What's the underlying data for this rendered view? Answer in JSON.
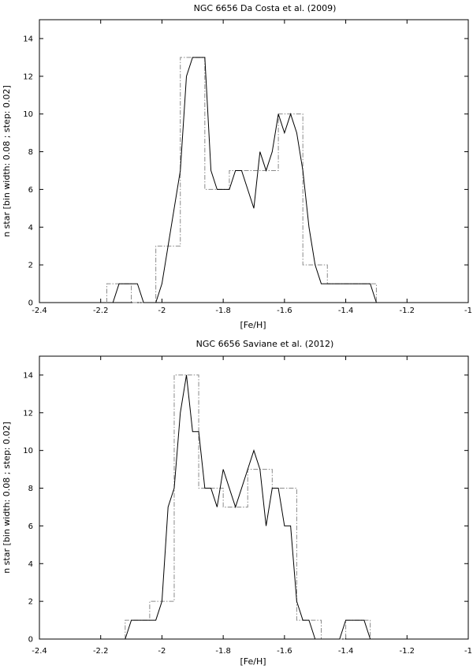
{
  "chart_data": [
    {
      "type": "line",
      "title": "NGC 6656    Da Costa et al. (2009)",
      "xlabel": "[Fe/H]",
      "ylabel": "n star [bin width: 0.08 ; step: 0.02]",
      "xlim": [
        -2.4,
        -1.0
      ],
      "ylim": [
        0,
        15
      ],
      "xticks": [
        "-2.4",
        "-2.2",
        "-2",
        "-1.8",
        "-1.6",
        "-1.4",
        "-1.2",
        "-1"
      ],
      "yticks": [
        "0",
        "2",
        "4",
        "6",
        "8",
        "10",
        "12",
        "14"
      ],
      "grid": false,
      "series": [
        {
          "style": "solid",
          "x": [
            -2.16,
            -2.14,
            -2.12,
            -2.1,
            -2.08,
            -2.06,
            -2.04,
            -2.02,
            -2.0,
            -1.98,
            -1.96,
            -1.94,
            -1.92,
            -1.9,
            -1.88,
            -1.86,
            -1.84,
            -1.82,
            -1.8,
            -1.78,
            -1.76,
            -1.74,
            -1.72,
            -1.7,
            -1.68,
            -1.66,
            -1.64,
            -1.62,
            -1.6,
            -1.58,
            -1.56,
            -1.54,
            -1.52,
            -1.5,
            -1.48,
            -1.46,
            -1.44,
            -1.42,
            -1.4,
            -1.38,
            -1.36,
            -1.34,
            -1.32,
            -1.3
          ],
          "y": [
            0,
            1,
            1,
            1,
            1,
            0,
            0,
            0,
            1,
            3,
            5,
            7,
            12,
            13,
            13,
            13,
            7,
            6,
            6,
            6,
            7,
            7,
            6,
            5,
            8,
            7,
            8,
            10,
            9,
            10,
            9,
            7,
            4,
            2,
            1,
            1,
            1,
            1,
            1,
            1,
            1,
            1,
            1,
            0
          ]
        },
        {
          "style": "dash-dot",
          "step_edges": [
            -2.18,
            -2.1,
            -2.02,
            -1.94,
            -1.86,
            -1.78,
            -1.7,
            -1.62,
            -1.54,
            -1.46,
            -1.38,
            -1.3
          ],
          "counts": [
            1,
            0,
            3,
            13,
            6,
            7,
            7,
            10,
            2,
            1,
            1
          ]
        }
      ]
    },
    {
      "type": "line",
      "title": "NGC 6656    Saviane et al. (2012)",
      "xlabel": "[Fe/H]",
      "ylabel": "n star [bin width: 0.08 ; step: 0.02]",
      "xlim": [
        -2.4,
        -1.0
      ],
      "ylim": [
        0,
        15
      ],
      "xticks": [
        "-2.4",
        "-2.2",
        "-2",
        "-1.8",
        "-1.6",
        "-1.4",
        "-1.2",
        "-1"
      ],
      "yticks": [
        "0",
        "2",
        "4",
        "6",
        "8",
        "10",
        "12",
        "14"
      ],
      "grid": false,
      "series": [
        {
          "style": "solid",
          "x": [
            -2.12,
            -2.1,
            -2.08,
            -2.06,
            -2.04,
            -2.02,
            -2.0,
            -1.98,
            -1.96,
            -1.94,
            -1.92,
            -1.9,
            -1.88,
            -1.86,
            -1.84,
            -1.82,
            -1.8,
            -1.78,
            -1.76,
            -1.74,
            -1.72,
            -1.7,
            -1.68,
            -1.66,
            -1.64,
            -1.62,
            -1.6,
            -1.58,
            -1.56,
            -1.54,
            -1.52,
            -1.5,
            -1.48,
            -1.46,
            -1.44,
            -1.42,
            -1.4,
            -1.38,
            -1.36,
            -1.34,
            -1.32
          ],
          "y": [
            0,
            1,
            1,
            1,
            1,
            1,
            2,
            7,
            8,
            12,
            14,
            11,
            11,
            8,
            8,
            7,
            9,
            8,
            7,
            8,
            9,
            10,
            9,
            6,
            8,
            8,
            6,
            6,
            2,
            1,
            1,
            0,
            0,
            0,
            0,
            0,
            1,
            1,
            1,
            1,
            0
          ]
        },
        {
          "style": "dash-dot",
          "step_edges": [
            -2.12,
            -2.04,
            -1.96,
            -1.88,
            -1.8,
            -1.72,
            -1.64,
            -1.56,
            -1.48,
            -1.4,
            -1.32
          ],
          "counts": [
            1,
            2,
            14,
            8,
            7,
            9,
            8,
            1,
            0,
            1
          ]
        }
      ]
    }
  ]
}
